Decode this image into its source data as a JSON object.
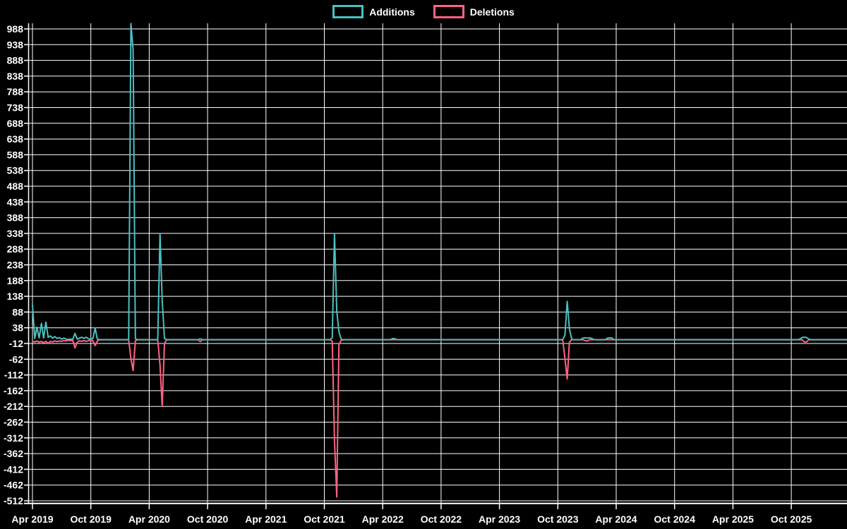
{
  "background_color": "#000000",
  "gridline_color": "#ffffff",
  "legend": {
    "items": [
      {
        "label": "Additions",
        "color": "#4BC0C0"
      },
      {
        "label": "Deletions",
        "color": "#FF6384"
      }
    ]
  },
  "chart_data": {
    "type": "line",
    "title": "",
    "xlabel": "",
    "ylabel": "",
    "grid": true,
    "legend_position": "top-center",
    "x_axis": {
      "tick_labels": [
        "Apr 2019",
        "Oct 2019",
        "Apr 2020",
        "Oct 2020",
        "Apr 2021",
        "Oct 2021",
        "Apr 2022",
        "Oct 2022",
        "Apr 2023",
        "Oct 2023",
        "Apr 2024",
        "Oct 2024",
        "Apr 2025",
        "Oct 2025"
      ],
      "start_week": "2019-04-07",
      "week_interval_days": 7,
      "weeks_total": 364
    },
    "y_axis": {
      "tick_labels": [
        988,
        938,
        888,
        838,
        788,
        738,
        688,
        638,
        588,
        538,
        488,
        438,
        388,
        338,
        288,
        238,
        188,
        138,
        88,
        38,
        -12,
        -62,
        -112,
        -162,
        -212,
        -262,
        -312,
        -362,
        -412,
        -462,
        -512
      ],
      "tick_step": 50,
      "axis_min": -519,
      "axis_max": 1006
    },
    "series": [
      {
        "name": "Additions",
        "color": "#4BC0C0",
        "default_value": 0,
        "points": [
          [
            0,
            110
          ],
          [
            1,
            4
          ],
          [
            2,
            40
          ],
          [
            3,
            6
          ],
          [
            4,
            52
          ],
          [
            5,
            5
          ],
          [
            6,
            56
          ],
          [
            7,
            8
          ],
          [
            8,
            12
          ],
          [
            9,
            5
          ],
          [
            10,
            10
          ],
          [
            11,
            4
          ],
          [
            12,
            7
          ],
          [
            13,
            2
          ],
          [
            14,
            5
          ],
          [
            15,
            2
          ],
          [
            16,
            1
          ],
          [
            17,
            2
          ],
          [
            18,
            1
          ],
          [
            19,
            20
          ],
          [
            20,
            2
          ],
          [
            21,
            5
          ],
          [
            22,
            8
          ],
          [
            23,
            4
          ],
          [
            24,
            8
          ],
          [
            25,
            3
          ],
          [
            26,
            2
          ],
          [
            27,
            4
          ],
          [
            28,
            37
          ],
          [
            29,
            2
          ],
          [
            44,
            1005
          ],
          [
            45,
            920
          ],
          [
            46,
            3
          ],
          [
            57,
            338
          ],
          [
            58,
            125
          ],
          [
            59,
            4
          ],
          [
            75,
            3
          ],
          [
            134,
            6
          ],
          [
            135,
            338
          ],
          [
            136,
            92
          ],
          [
            137,
            25
          ],
          [
            138,
            2
          ],
          [
            161,
            4
          ],
          [
            162,
            3
          ],
          [
            238,
            15
          ],
          [
            239,
            122
          ],
          [
            240,
            35
          ],
          [
            241,
            2
          ],
          [
            246,
            5
          ],
          [
            247,
            6
          ],
          [
            248,
            5
          ],
          [
            249,
            6
          ],
          [
            250,
            4
          ],
          [
            257,
            5
          ],
          [
            258,
            6
          ],
          [
            259,
            5
          ],
          [
            343,
            2
          ],
          [
            344,
            7
          ],
          [
            345,
            8
          ],
          [
            346,
            7
          ],
          [
            347,
            2
          ]
        ]
      },
      {
        "name": "Deletions",
        "color": "#FF6384",
        "default_value": 0,
        "points": [
          [
            0,
            -4
          ],
          [
            1,
            -7
          ],
          [
            2,
            -4
          ],
          [
            3,
            -8
          ],
          [
            4,
            -5
          ],
          [
            5,
            -10
          ],
          [
            6,
            -5
          ],
          [
            7,
            -12
          ],
          [
            8,
            -5
          ],
          [
            9,
            -7
          ],
          [
            10,
            -4
          ],
          [
            11,
            -6
          ],
          [
            12,
            -4
          ],
          [
            13,
            -5
          ],
          [
            14,
            -3
          ],
          [
            15,
            -4
          ],
          [
            16,
            -2
          ],
          [
            17,
            -3
          ],
          [
            18,
            -2
          ],
          [
            19,
            -26
          ],
          [
            20,
            -8
          ],
          [
            21,
            -3
          ],
          [
            22,
            -5
          ],
          [
            23,
            -3
          ],
          [
            24,
            -5
          ],
          [
            25,
            -3
          ],
          [
            26,
            -2
          ],
          [
            27,
            -3
          ],
          [
            28,
            -19
          ],
          [
            29,
            -4
          ],
          [
            44,
            -60
          ],
          [
            45,
            -98
          ],
          [
            46,
            -3
          ],
          [
            57,
            -80
          ],
          [
            58,
            -212
          ],
          [
            59,
            -12
          ],
          [
            75,
            -6
          ],
          [
            134,
            -5
          ],
          [
            135,
            -320
          ],
          [
            136,
            -500
          ],
          [
            137,
            -15
          ],
          [
            138,
            -2
          ],
          [
            238,
            -60
          ],
          [
            239,
            -125
          ],
          [
            240,
            -8
          ],
          [
            247,
            -3
          ],
          [
            248,
            -4
          ],
          [
            345,
            -7
          ],
          [
            346,
            -7
          ]
        ]
      }
    ]
  }
}
